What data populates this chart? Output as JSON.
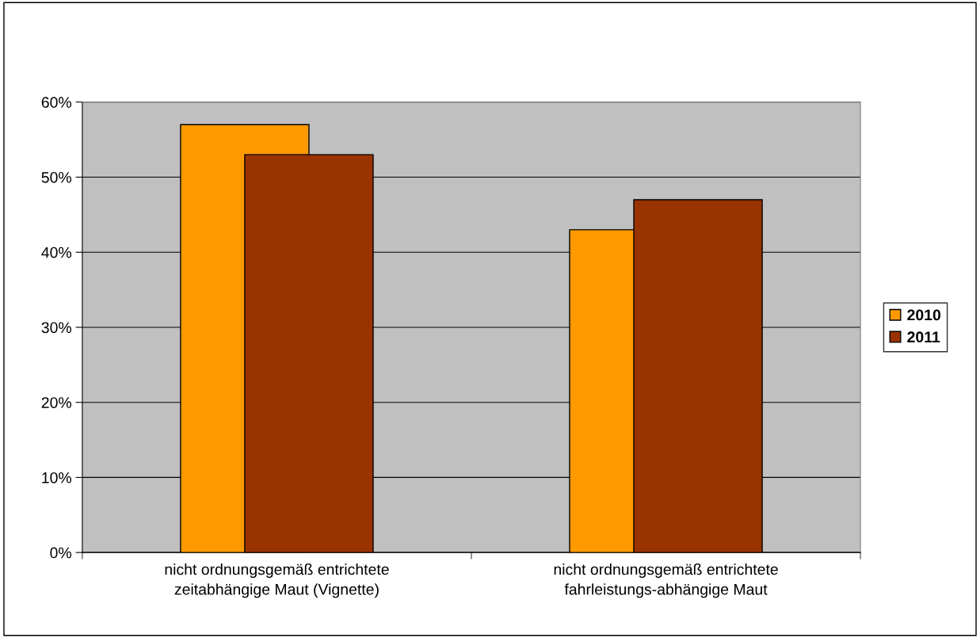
{
  "chart_data": {
    "type": "bar",
    "categories": [
      "nicht ordnungsgemäß entrichtete\nzeitabhängige Maut (Vignette)",
      "nicht ordnungsgemäß entrichtete\nfahrleistungs-abhängige Maut"
    ],
    "series": [
      {
        "name": "2010",
        "color": "#ff9900",
        "values": [
          57,
          43
        ]
      },
      {
        "name": "2011",
        "color": "#993300",
        "values": [
          53,
          47
        ]
      }
    ],
    "ylim": [
      0,
      60
    ],
    "yticks": [
      {
        "value": 0,
        "label": "0%"
      },
      {
        "value": 10,
        "label": "10%"
      },
      {
        "value": 20,
        "label": "20%"
      },
      {
        "value": 30,
        "label": "30%"
      },
      {
        "value": 40,
        "label": "40%"
      },
      {
        "value": 50,
        "label": "50%"
      },
      {
        "value": 60,
        "label": "60%"
      }
    ],
    "grid": "y",
    "legend": "right"
  }
}
